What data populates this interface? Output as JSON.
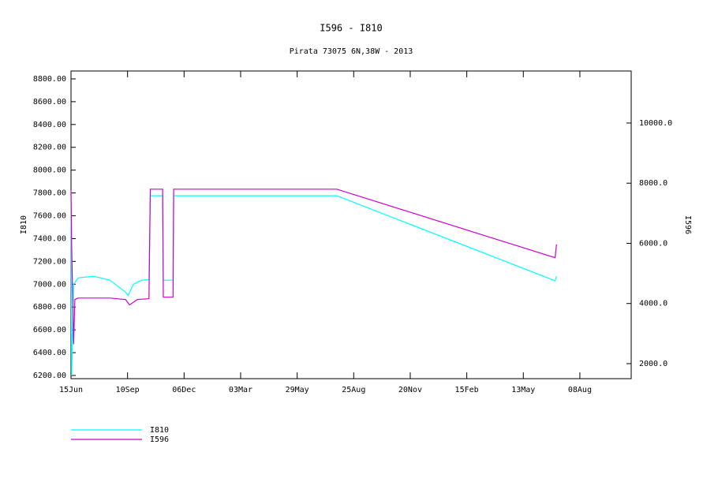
{
  "chart_data": {
    "type": "line",
    "title": "I596 - I810",
    "subtitle": "Pirata 73075 6N,38W - 2013",
    "ylabel": "I810",
    "y2label": "I596",
    "xlim": [
      0,
      862
    ],
    "xticks": [
      {
        "value": 0,
        "label": "15Jun"
      },
      {
        "value": 87,
        "label": "10Sep"
      },
      {
        "value": 174,
        "label": "06Dec"
      },
      {
        "value": 261,
        "label": "03Mar"
      },
      {
        "value": 348,
        "label": "29May"
      },
      {
        "value": 435,
        "label": "25Aug"
      },
      {
        "value": 522,
        "label": "20Nov"
      },
      {
        "value": 609,
        "label": "15Feb"
      },
      {
        "value": 696,
        "label": "13May"
      },
      {
        "value": 783,
        "label": "08Aug"
      }
    ],
    "ylim": [
      6172,
      8869
    ],
    "yticks": [
      {
        "value": 6200,
        "label": "6200.00"
      },
      {
        "value": 6400,
        "label": "6400.00"
      },
      {
        "value": 6600,
        "label": "6600.00"
      },
      {
        "value": 6800,
        "label": "6800.00"
      },
      {
        "value": 7000,
        "label": "7000.00"
      },
      {
        "value": 7200,
        "label": "7200.00"
      },
      {
        "value": 7400,
        "label": "7400.00"
      },
      {
        "value": 7600,
        "label": "7600.00"
      },
      {
        "value": 7800,
        "label": "7800.00"
      },
      {
        "value": 8000,
        "label": "8000.00"
      },
      {
        "value": 8200,
        "label": "8200.00"
      },
      {
        "value": 8400,
        "label": "8400.00"
      },
      {
        "value": 8600,
        "label": "8600.00"
      },
      {
        "value": 8800,
        "label": "8800.00"
      }
    ],
    "y2lim": [
      1500,
      11730
    ],
    "y2ticks": [
      {
        "value": 2000,
        "label": "2000.0"
      },
      {
        "value": 4000,
        "label": "4000.0"
      },
      {
        "value": 6000,
        "label": "6000.0"
      },
      {
        "value": 8000,
        "label": "8000.0"
      },
      {
        "value": 10000,
        "label": "10000.0"
      }
    ],
    "series": [
      {
        "name": "I810",
        "color": "#00ffff",
        "x": [
          0,
          1,
          4,
          11,
          35,
          60,
          84,
          88,
          96,
          108,
          120,
          122,
          141,
          142,
          157,
          158,
          409,
          745,
          747
        ],
        "values": [
          7800,
          6200,
          7000,
          7056,
          7070,
          7035,
          6930,
          6900,
          7000,
          7035,
          7040,
          7776,
          7776,
          7035,
          7035,
          7776,
          7776,
          7030,
          7070
        ]
      },
      {
        "name": "I596",
        "color": "#cc00cc",
        "axis": "y2",
        "x": [
          0,
          1,
          4,
          6,
          11,
          60,
          84,
          90,
          102,
          120,
          122,
          141,
          142,
          157,
          158,
          409,
          745,
          747
        ],
        "values": [
          7770,
          5965,
          2640,
          4130,
          4180,
          4180,
          4130,
          3950,
          4130,
          4160,
          7800,
          7800,
          4210,
          4210,
          7800,
          7800,
          5520,
          5965
        ]
      }
    ]
  }
}
